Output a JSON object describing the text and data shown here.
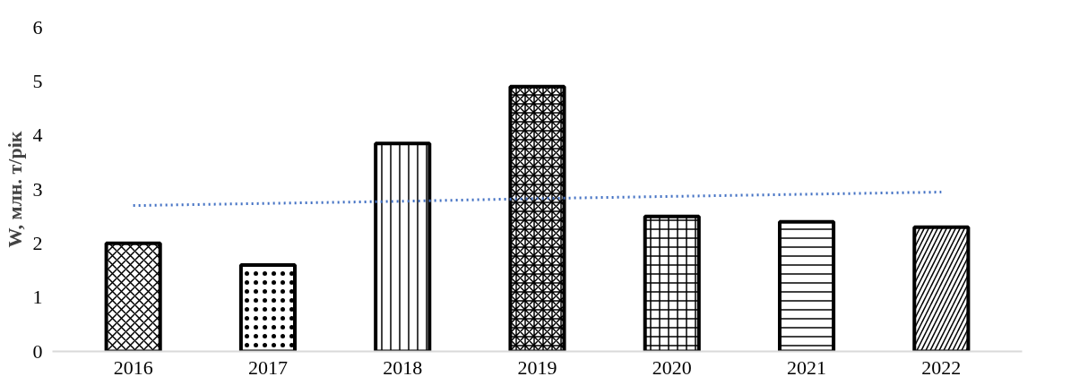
{
  "chart_data": {
    "type": "bar",
    "ylabel": "W, млн. т/рік",
    "categories": [
      "2016",
      "2017",
      "2018",
      "2019",
      "2020",
      "2021",
      "2022"
    ],
    "series": [
      {
        "color": "#000000",
        "values": [
          2.0,
          1.6,
          3.85,
          4.9,
          2.5,
          2.4,
          2.3
        ]
      },
      {
        "type": "line",
        "color": "#4472c4",
        "values": [
          2.7,
          2.74,
          2.78,
          2.83,
          2.87,
          2.91,
          2.95
        ],
        "line_style": "dotted"
      }
    ],
    "ylim": [
      0,
      6
    ],
    "yticks": [
      0,
      1,
      2,
      3,
      4,
      5,
      6
    ],
    "grid": false
  }
}
